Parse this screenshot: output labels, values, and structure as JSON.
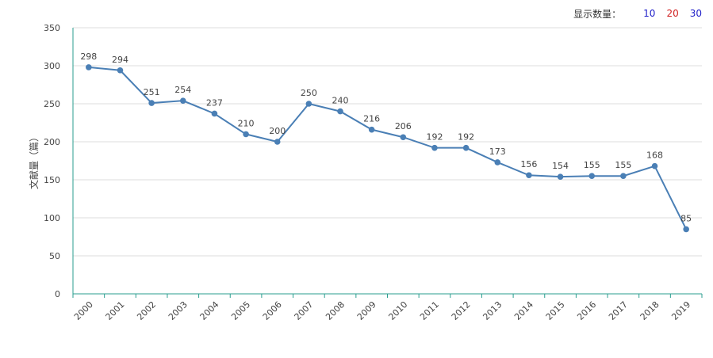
{
  "controls": {
    "label": "显示数量：",
    "options": [
      {
        "label": "10",
        "color": "#2121c9"
      },
      {
        "label": "20",
        "color": "#d12121"
      },
      {
        "label": "30",
        "color": "#2121c9"
      }
    ]
  },
  "colors": {
    "line": "#4a7fb5",
    "axis": "#2a9d8f",
    "grid": "#dddddd"
  },
  "chart_data": {
    "type": "line",
    "title": "",
    "xlabel": "",
    "ylabel": "文献量（篇）",
    "ylim": [
      0,
      350
    ],
    "yticks": [
      0,
      50,
      100,
      150,
      200,
      250,
      300,
      350
    ],
    "grid": true,
    "categories": [
      "2000",
      "2001",
      "2002",
      "2003",
      "2004",
      "2005",
      "2006",
      "2007",
      "2008",
      "2009",
      "2010",
      "2011",
      "2012",
      "2013",
      "2014",
      "2015",
      "2016",
      "2017",
      "2018",
      "2019"
    ],
    "series": [
      {
        "values": [
          298,
          294,
          251,
          254,
          237,
          210,
          200,
          250,
          240,
          216,
          206,
          192,
          192,
          173,
          156,
          154,
          155,
          155,
          168,
          85
        ]
      }
    ]
  }
}
